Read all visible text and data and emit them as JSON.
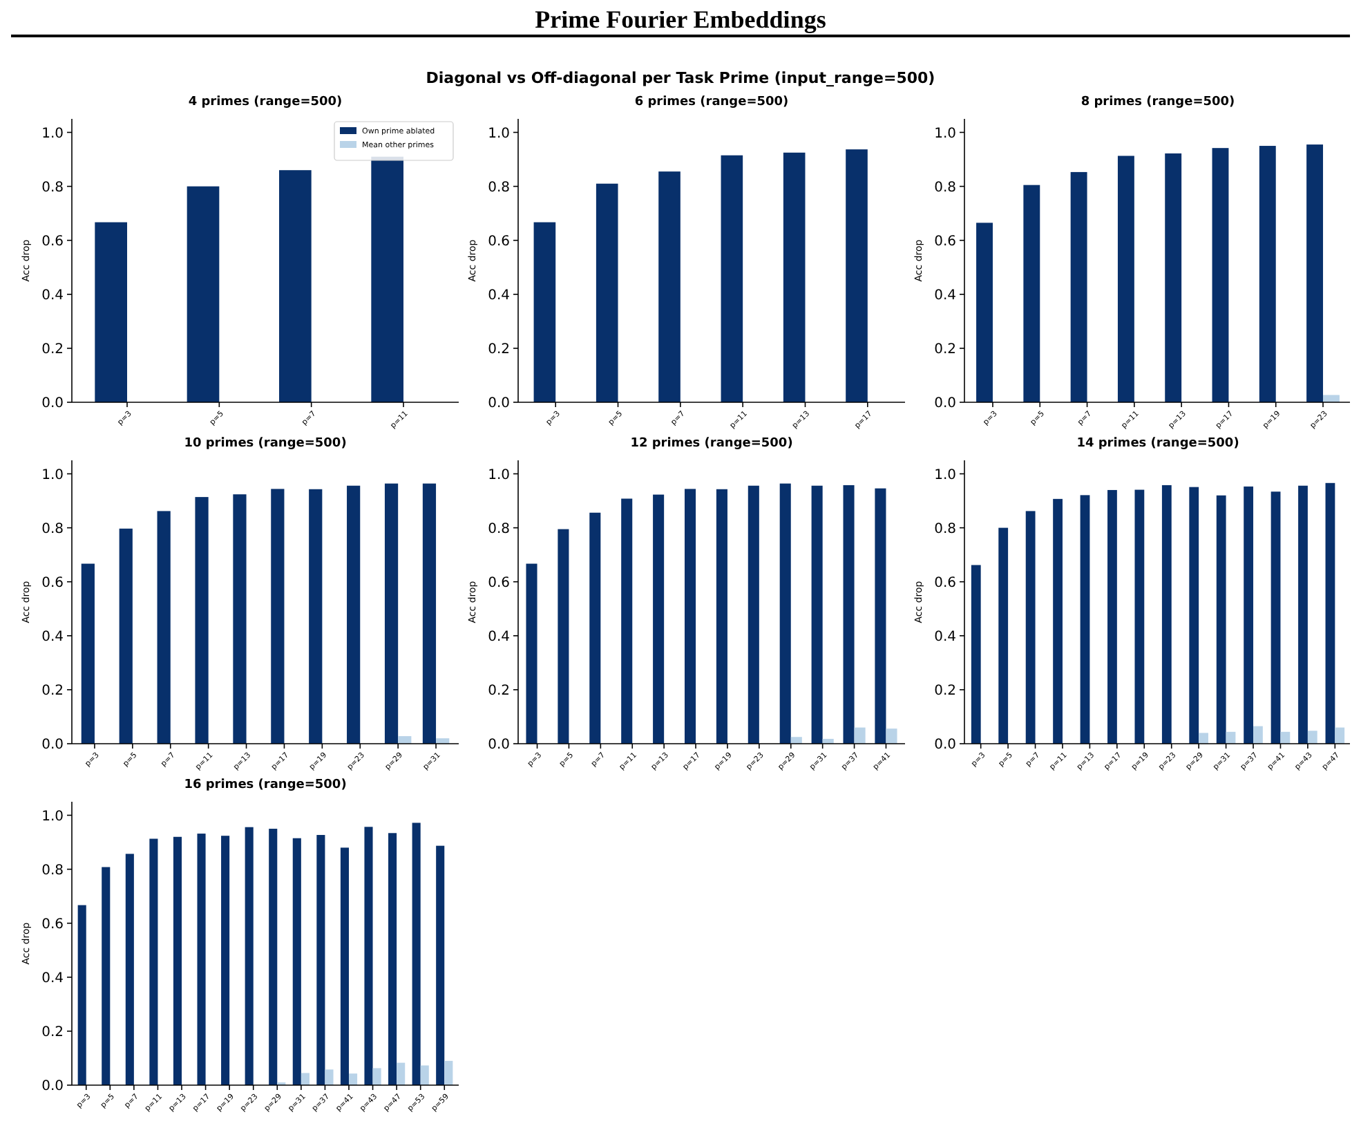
{
  "chart_data": [
    {
      "type": "other",
      "title": "Prime Fourier Embeddings",
      "subtitle": "Diagonal vs Off-diagonal per Task Prime  (input_range=500)"
    },
    {
      "type": "bar",
      "title": "4 primes  (range=500)",
      "ylabel": "Acc drop",
      "categories": [
        "p=3",
        "p=5",
        "p=7",
        "p=11"
      ],
      "ylim": [
        0,
        1.05
      ],
      "yticks": [
        {
          "value": 0,
          "label": "0.0"
        },
        {
          "value": 0.2,
          "label": "0.2"
        },
        {
          "value": 0.4,
          "label": "0.4"
        },
        {
          "value": 0.6,
          "label": "0.6"
        },
        {
          "value": 0.8,
          "label": "0.8"
        },
        {
          "value": 1,
          "label": "1.0"
        }
      ],
      "legend": "top right",
      "series": [
        {
          "name": "Own prime ablated",
          "color": "#08306b",
          "values": [
            0.667,
            0.8,
            0.86,
            0.91
          ]
        },
        {
          "name": "Mean other primes",
          "color": "#b9d3e8",
          "values": [
            0,
            0,
            0,
            0
          ]
        }
      ]
    },
    {
      "type": "bar",
      "title": "6 primes  (range=500)",
      "ylabel": "Acc drop",
      "categories": [
        "p=3",
        "p=5",
        "p=7",
        "p=11",
        "p=13",
        "p=17"
      ],
      "ylim": [
        0,
        1.05
      ],
      "yticks": [
        {
          "value": 0,
          "label": "0.0"
        },
        {
          "value": 0.2,
          "label": "0.2"
        },
        {
          "value": 0.4,
          "label": "0.4"
        },
        {
          "value": 0.6,
          "label": "0.6"
        },
        {
          "value": 0.8,
          "label": "0.8"
        },
        {
          "value": 1,
          "label": "1.0"
        }
      ],
      "series": [
        {
          "color": "#08306b",
          "values": [
            0.667,
            0.81,
            0.855,
            0.915,
            0.925,
            0.937
          ]
        },
        {
          "color": "#b9d3e8",
          "values": [
            0,
            0,
            0,
            0,
            0,
            0
          ]
        }
      ]
    },
    {
      "type": "bar",
      "title": "8 primes  (range=500)",
      "ylabel": "Acc drop",
      "categories": [
        "p=3",
        "p=5",
        "p=7",
        "p=11",
        "p=13",
        "p=17",
        "p=19",
        "p=23"
      ],
      "ylim": [
        0,
        1.05
      ],
      "yticks": [
        {
          "value": 0,
          "label": "0.0"
        },
        {
          "value": 0.2,
          "label": "0.2"
        },
        {
          "value": 0.4,
          "label": "0.4"
        },
        {
          "value": 0.6,
          "label": "0.6"
        },
        {
          "value": 0.8,
          "label": "0.8"
        },
        {
          "value": 1,
          "label": "1.0"
        }
      ],
      "series": [
        {
          "color": "#08306b",
          "values": [
            0.665,
            0.805,
            0.853,
            0.913,
            0.922,
            0.942,
            0.95,
            0.955
          ]
        },
        {
          "color": "#b9d3e8",
          "values": [
            0,
            0,
            0,
            0,
            0,
            0,
            0,
            0.027
          ]
        }
      ]
    },
    {
      "type": "bar",
      "title": "10 primes  (range=500)",
      "ylabel": "Acc drop",
      "categories": [
        "p=3",
        "p=5",
        "p=7",
        "p=11",
        "p=13",
        "p=17",
        "p=19",
        "p=23",
        "p=29",
        "p=31"
      ],
      "ylim": [
        0,
        1.05
      ],
      "yticks": [
        {
          "value": 0,
          "label": "0.0"
        },
        {
          "value": 0.2,
          "label": "0.2"
        },
        {
          "value": 0.4,
          "label": "0.4"
        },
        {
          "value": 0.6,
          "label": "0.6"
        },
        {
          "value": 0.8,
          "label": "0.8"
        },
        {
          "value": 1,
          "label": "1.0"
        }
      ],
      "series": [
        {
          "color": "#08306b",
          "values": [
            0.667,
            0.797,
            0.862,
            0.914,
            0.924,
            0.944,
            0.943,
            0.956,
            0.964,
            0.964
          ]
        },
        {
          "color": "#b9d3e8",
          "values": [
            0,
            0,
            0,
            0,
            0,
            0,
            0,
            0,
            0.028,
            0.02
          ]
        }
      ]
    },
    {
      "type": "bar",
      "title": "12 primes  (range=500)",
      "ylabel": "Acc drop",
      "categories": [
        "p=3",
        "p=5",
        "p=7",
        "p=11",
        "p=13",
        "p=17",
        "p=19",
        "p=23",
        "p=29",
        "p=31",
        "p=37",
        "p=41"
      ],
      "ylim": [
        0,
        1.05
      ],
      "yticks": [
        {
          "value": 0,
          "label": "0.0"
        },
        {
          "value": 0.2,
          "label": "0.2"
        },
        {
          "value": 0.4,
          "label": "0.4"
        },
        {
          "value": 0.6,
          "label": "0.6"
        },
        {
          "value": 0.8,
          "label": "0.8"
        },
        {
          "value": 1,
          "label": "1.0"
        }
      ],
      "series": [
        {
          "color": "#08306b",
          "values": [
            0.667,
            0.795,
            0.856,
            0.908,
            0.923,
            0.944,
            0.943,
            0.956,
            0.964,
            0.956,
            0.958,
            0.946
          ]
        },
        {
          "color": "#b9d3e8",
          "values": [
            0,
            0,
            0,
            0,
            0,
            0,
            0,
            0,
            0.025,
            0.018,
            0.06,
            0.056
          ]
        }
      ]
    },
    {
      "type": "bar",
      "title": "14 primes  (range=500)",
      "ylabel": "Acc drop",
      "categories": [
        "p=3",
        "p=5",
        "p=7",
        "p=11",
        "p=13",
        "p=17",
        "p=19",
        "p=23",
        "p=29",
        "p=31",
        "p=37",
        "p=41",
        "p=43",
        "p=47"
      ],
      "ylim": [
        0,
        1.05
      ],
      "yticks": [
        {
          "value": 0,
          "label": "0.0"
        },
        {
          "value": 0.2,
          "label": "0.2"
        },
        {
          "value": 0.4,
          "label": "0.4"
        },
        {
          "value": 0.6,
          "label": "0.6"
        },
        {
          "value": 0.8,
          "label": "0.8"
        },
        {
          "value": 1,
          "label": "1.0"
        }
      ],
      "series": [
        {
          "color": "#08306b",
          "values": [
            0.662,
            0.8,
            0.862,
            0.907,
            0.921,
            0.94,
            0.941,
            0.958,
            0.951,
            0.92,
            0.953,
            0.934,
            0.956,
            0.966
          ]
        },
        {
          "color": "#b9d3e8",
          "values": [
            0,
            0,
            0,
            0,
            0,
            0,
            0,
            0,
            0.04,
            0.044,
            0.065,
            0.044,
            0.048,
            0.06
          ]
        }
      ]
    },
    {
      "type": "bar",
      "title": "16 primes  (range=500)",
      "ylabel": "Acc drop",
      "categories": [
        "p=3",
        "p=5",
        "p=7",
        "p=11",
        "p=13",
        "p=17",
        "p=19",
        "p=23",
        "p=29",
        "p=31",
        "p=37",
        "p=41",
        "p=43",
        "p=47",
        "p=53",
        "p=59"
      ],
      "ylim": [
        0,
        1.05
      ],
      "yticks": [
        {
          "value": 0,
          "label": "0.0"
        },
        {
          "value": 0.2,
          "label": "0.2"
        },
        {
          "value": 0.4,
          "label": "0.4"
        },
        {
          "value": 0.6,
          "label": "0.6"
        },
        {
          "value": 0.8,
          "label": "0.8"
        },
        {
          "value": 1,
          "label": "1.0"
        }
      ],
      "series": [
        {
          "color": "#08306b",
          "values": [
            0.667,
            0.808,
            0.857,
            0.913,
            0.92,
            0.932,
            0.924,
            0.956,
            0.95,
            0.915,
            0.927,
            0.88,
            0.957,
            0.934,
            0.972,
            0.887
          ]
        },
        {
          "color": "#b9d3e8",
          "values": [
            0,
            0,
            0,
            0,
            0,
            0,
            0,
            0,
            0.01,
            0.045,
            0.058,
            0.043,
            0.063,
            0.083,
            0.073,
            0.09
          ]
        }
      ]
    }
  ]
}
